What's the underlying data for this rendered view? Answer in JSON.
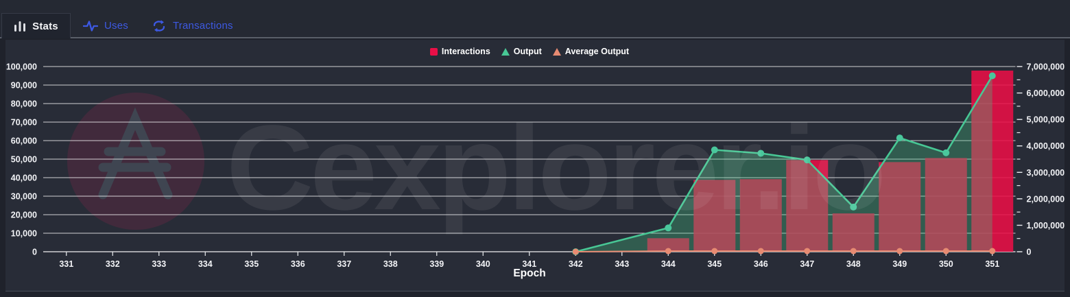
{
  "tabs": [
    {
      "label": "Stats",
      "icon": "bar-chart",
      "active": true
    },
    {
      "label": "Uses",
      "icon": "activity",
      "active": false
    },
    {
      "label": "Transactions",
      "icon": "cycle-arrows",
      "active": false
    }
  ],
  "watermark": {
    "text": "Cexplorer.io",
    "logo": "cardano-ada-logo"
  },
  "colors": {
    "panel_bg": "#282c37",
    "topbar_bg": "#252933",
    "tab_blue": "#3d59e3",
    "interactions_red": "#e90f47",
    "output_green": "#48c795",
    "output_area_fill": "rgba(70,190,130,0.33)",
    "average_salmon": "#e78b72",
    "gridline": "rgba(255,255,255,0.78)"
  },
  "chart_data": {
    "type": "bar",
    "subtype": "column + area-line combo",
    "title": "",
    "xlabel": "Epoch",
    "grid": "horizontal",
    "legend_position": "top-center",
    "categories": [
      331,
      332,
      333,
      334,
      335,
      336,
      337,
      338,
      339,
      340,
      341,
      342,
      343,
      344,
      345,
      346,
      347,
      348,
      349,
      350,
      351
    ],
    "left_axis": {
      "min": 0,
      "max": 100000,
      "ticks": [
        0,
        10000,
        20000,
        30000,
        40000,
        50000,
        60000,
        70000,
        80000,
        90000,
        100000
      ]
    },
    "right_axis": {
      "min": 0,
      "max": 7000000,
      "minor_step": 500000,
      "ticks": [
        0,
        1000000,
        2000000,
        3000000,
        4000000,
        5000000,
        6000000,
        7000000
      ]
    },
    "series": [
      {
        "name": "Interactions",
        "type": "column",
        "axis": "left",
        "color": "#e90f47",
        "symbol": "square",
        "values": [
          null,
          null,
          null,
          null,
          null,
          null,
          null,
          null,
          null,
          null,
          null,
          0,
          null,
          7300,
          38800,
          39200,
          49500,
          20700,
          48400,
          50600,
          97800
        ]
      },
      {
        "name": "Output",
        "type": "area-line",
        "axis": "right",
        "color": "#48c795",
        "symbol": "triangle",
        "fill": "rgba(70,190,130,0.33)",
        "values": [
          null,
          null,
          null,
          null,
          null,
          null,
          null,
          null,
          null,
          null,
          null,
          0,
          null,
          900000,
          3850000,
          3720000,
          3470000,
          1690000,
          4300000,
          3740000,
          6650000
        ]
      },
      {
        "name": "Average Output",
        "type": "line",
        "axis": "right",
        "color": "#e78b72",
        "symbol": "triangle",
        "values": [
          null,
          null,
          null,
          null,
          null,
          null,
          null,
          null,
          null,
          null,
          null,
          0,
          null,
          25000,
          25000,
          25000,
          25000,
          25000,
          25000,
          25000,
          25000
        ]
      }
    ]
  }
}
